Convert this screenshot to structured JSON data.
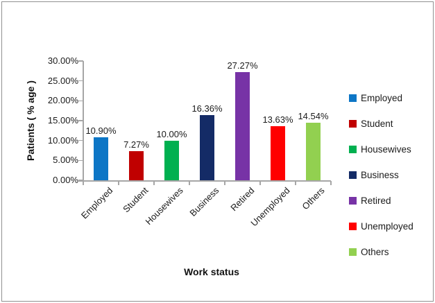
{
  "chart_data": {
    "type": "bar",
    "categories": [
      "Employed",
      "Student",
      "Housewives",
      "Business",
      "Retired",
      "Unemployed",
      "Others"
    ],
    "values": [
      10.9,
      7.27,
      10.0,
      16.36,
      27.27,
      13.63,
      14.54
    ],
    "data_labels": [
      "10.90%",
      "7.27%",
      "10.00%",
      "16.36%",
      "27.27%",
      "13.63%",
      "14.54%"
    ],
    "series_colors": [
      "#0d76c6",
      "#c00000",
      "#00b050",
      "#142b66",
      "#7733a6",
      "#ff0000",
      "#92d050"
    ],
    "xlabel": "Work status",
    "ylabel": "Patients ( % age )",
    "ylim": [
      0,
      30
    ],
    "ytick_labels": [
      "0.00%",
      "5.00%",
      "10.00%",
      "15.00%",
      "20.00%",
      "25.00%",
      "30.00%"
    ],
    "grid": false,
    "legend_position": "right",
    "legend": [
      {
        "label": "Employed",
        "color": "#0d76c6"
      },
      {
        "label": "Student",
        "color": "#c00000"
      },
      {
        "label": "Housewives",
        "color": "#00b050"
      },
      {
        "label": "Business",
        "color": "#142b66"
      },
      {
        "label": "Retired",
        "color": "#7733a6"
      },
      {
        "label": "Unemployed",
        "color": "#ff0000"
      },
      {
        "label": "Others",
        "color": "#92d050"
      }
    ]
  },
  "style_colors": {
    "axis": "#a6a6a6",
    "text": "#1a1a1a",
    "frame_border": "#8f8f8f"
  }
}
